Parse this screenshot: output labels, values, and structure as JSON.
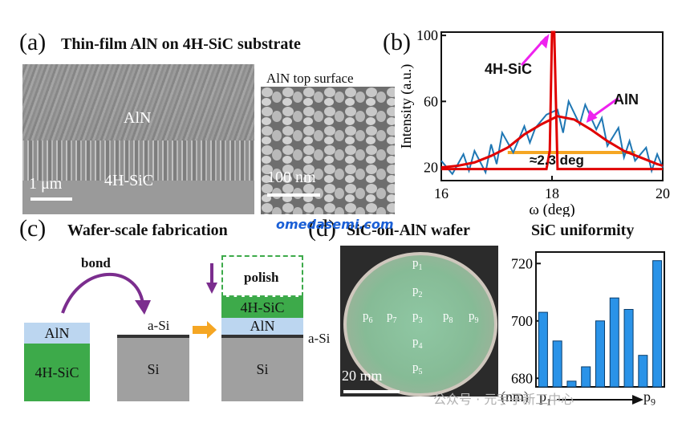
{
  "panel_a": {
    "label": "(a)",
    "title": "Thin-film AlN on 4H-SiC substrate",
    "sem_layer_top": "AlN",
    "sem_layer_bottom": "4H-SiC",
    "sem_scale": "1 μm",
    "inset_title": "AlN top surface",
    "inset_scale": "100 nm"
  },
  "panel_b": {
    "label": "(b)",
    "annotation_sic": "4H-SiC",
    "annotation_aln": "AlN",
    "fwhm": "≈2.3 deg",
    "colors": {
      "sic": "#e00000",
      "aln_raw": "#1f77b4",
      "arrow": "#ee22ee",
      "fwhm": "#f5a623"
    }
  },
  "panel_c": {
    "label": "(c)",
    "title": "Wafer-scale fabrication",
    "bond": "bond",
    "polish": "polish",
    "aln": "AlN",
    "sic": "4H-SiC",
    "si": "Si",
    "asi": "a-Si",
    "colors": {
      "aln": "#bcd6f0",
      "sic": "#3daa4a",
      "si": "#a0a0a0",
      "arrow": "#7b2d8e",
      "orange": "#f5a623"
    }
  },
  "panel_d": {
    "label": "(d)",
    "title": "SiC-on-AlN wafer",
    "scale": "20 mm",
    "points": [
      "p",
      "p",
      "p",
      "p",
      "p",
      "p",
      "p",
      "p",
      "p"
    ],
    "point_subs": [
      "1",
      "2",
      "3",
      "4",
      "5",
      "6",
      "7",
      "8",
      "9"
    ],
    "watermark": "omedasemi.com"
  },
  "panel_e": {
    "title": "SiC uniformity",
    "unit": "(nm)",
    "x_start": "p",
    "x_start_sub": "1",
    "x_end": "p",
    "x_end_sub": "9"
  },
  "footer": {
    "watermark": "公众号 · 元宇子新工中心"
  },
  "chart_data": [
    {
      "type": "line",
      "xlabel": "ω (deg)",
      "ylabel": "Intensity (a.u.)",
      "xlim": [
        16,
        20
      ],
      "ylim": [
        12,
        102
      ],
      "xticks": [
        16,
        18,
        20
      ],
      "yticks": [
        20,
        60,
        100
      ],
      "series": [
        {
          "name": "4H-SiC",
          "x": [
            16.0,
            17.9,
            17.96,
            18.0,
            18.04,
            18.1,
            20.0
          ],
          "y": [
            19,
            19,
            30,
            102,
            102,
            19,
            19
          ]
        },
        {
          "name": "AlN",
          "x": [
            16.0,
            16.3,
            16.6,
            16.9,
            17.2,
            17.5,
            17.8,
            18.1,
            18.4,
            18.7,
            19.0,
            19.3,
            19.6,
            19.9,
            20.0
          ],
          "y": [
            20,
            21,
            23,
            27,
            32,
            40,
            46,
            51,
            49,
            43,
            36,
            30,
            26,
            22,
            21
          ]
        },
        {
          "name": "",
          "x": [
            16.0,
            16.2,
            16.4,
            16.5,
            16.6,
            16.8,
            16.9,
            17.0,
            17.1,
            17.3,
            17.5,
            17.6,
            17.7,
            17.9,
            18.1,
            18.2,
            18.3,
            18.5,
            18.6,
            18.8,
            18.9,
            19.0,
            19.2,
            19.3,
            19.4,
            19.5,
            19.7,
            19.8,
            19.9,
            20.0
          ],
          "y": [
            24,
            16,
            28,
            18,
            30,
            17,
            34,
            22,
            41,
            29,
            45,
            35,
            44,
            52,
            55,
            41,
            60,
            46,
            58,
            43,
            50,
            33,
            44,
            26,
            36,
            24,
            32,
            18,
            28,
            20
          ]
        }
      ],
      "fwhm_range": [
        17.2,
        19.5
      ],
      "fwhm_y": 29
    },
    {
      "type": "bar",
      "categories": [
        "p1",
        "p2",
        "p3",
        "p4",
        "p5",
        "p6",
        "p7",
        "p8",
        "p9"
      ],
      "values": [
        703,
        693,
        679,
        684,
        700,
        708,
        704,
        688,
        721
      ],
      "ylim": [
        677,
        724
      ],
      "yticks": [
        680,
        700,
        720
      ],
      "bar_color": "#2a93e8"
    }
  ]
}
